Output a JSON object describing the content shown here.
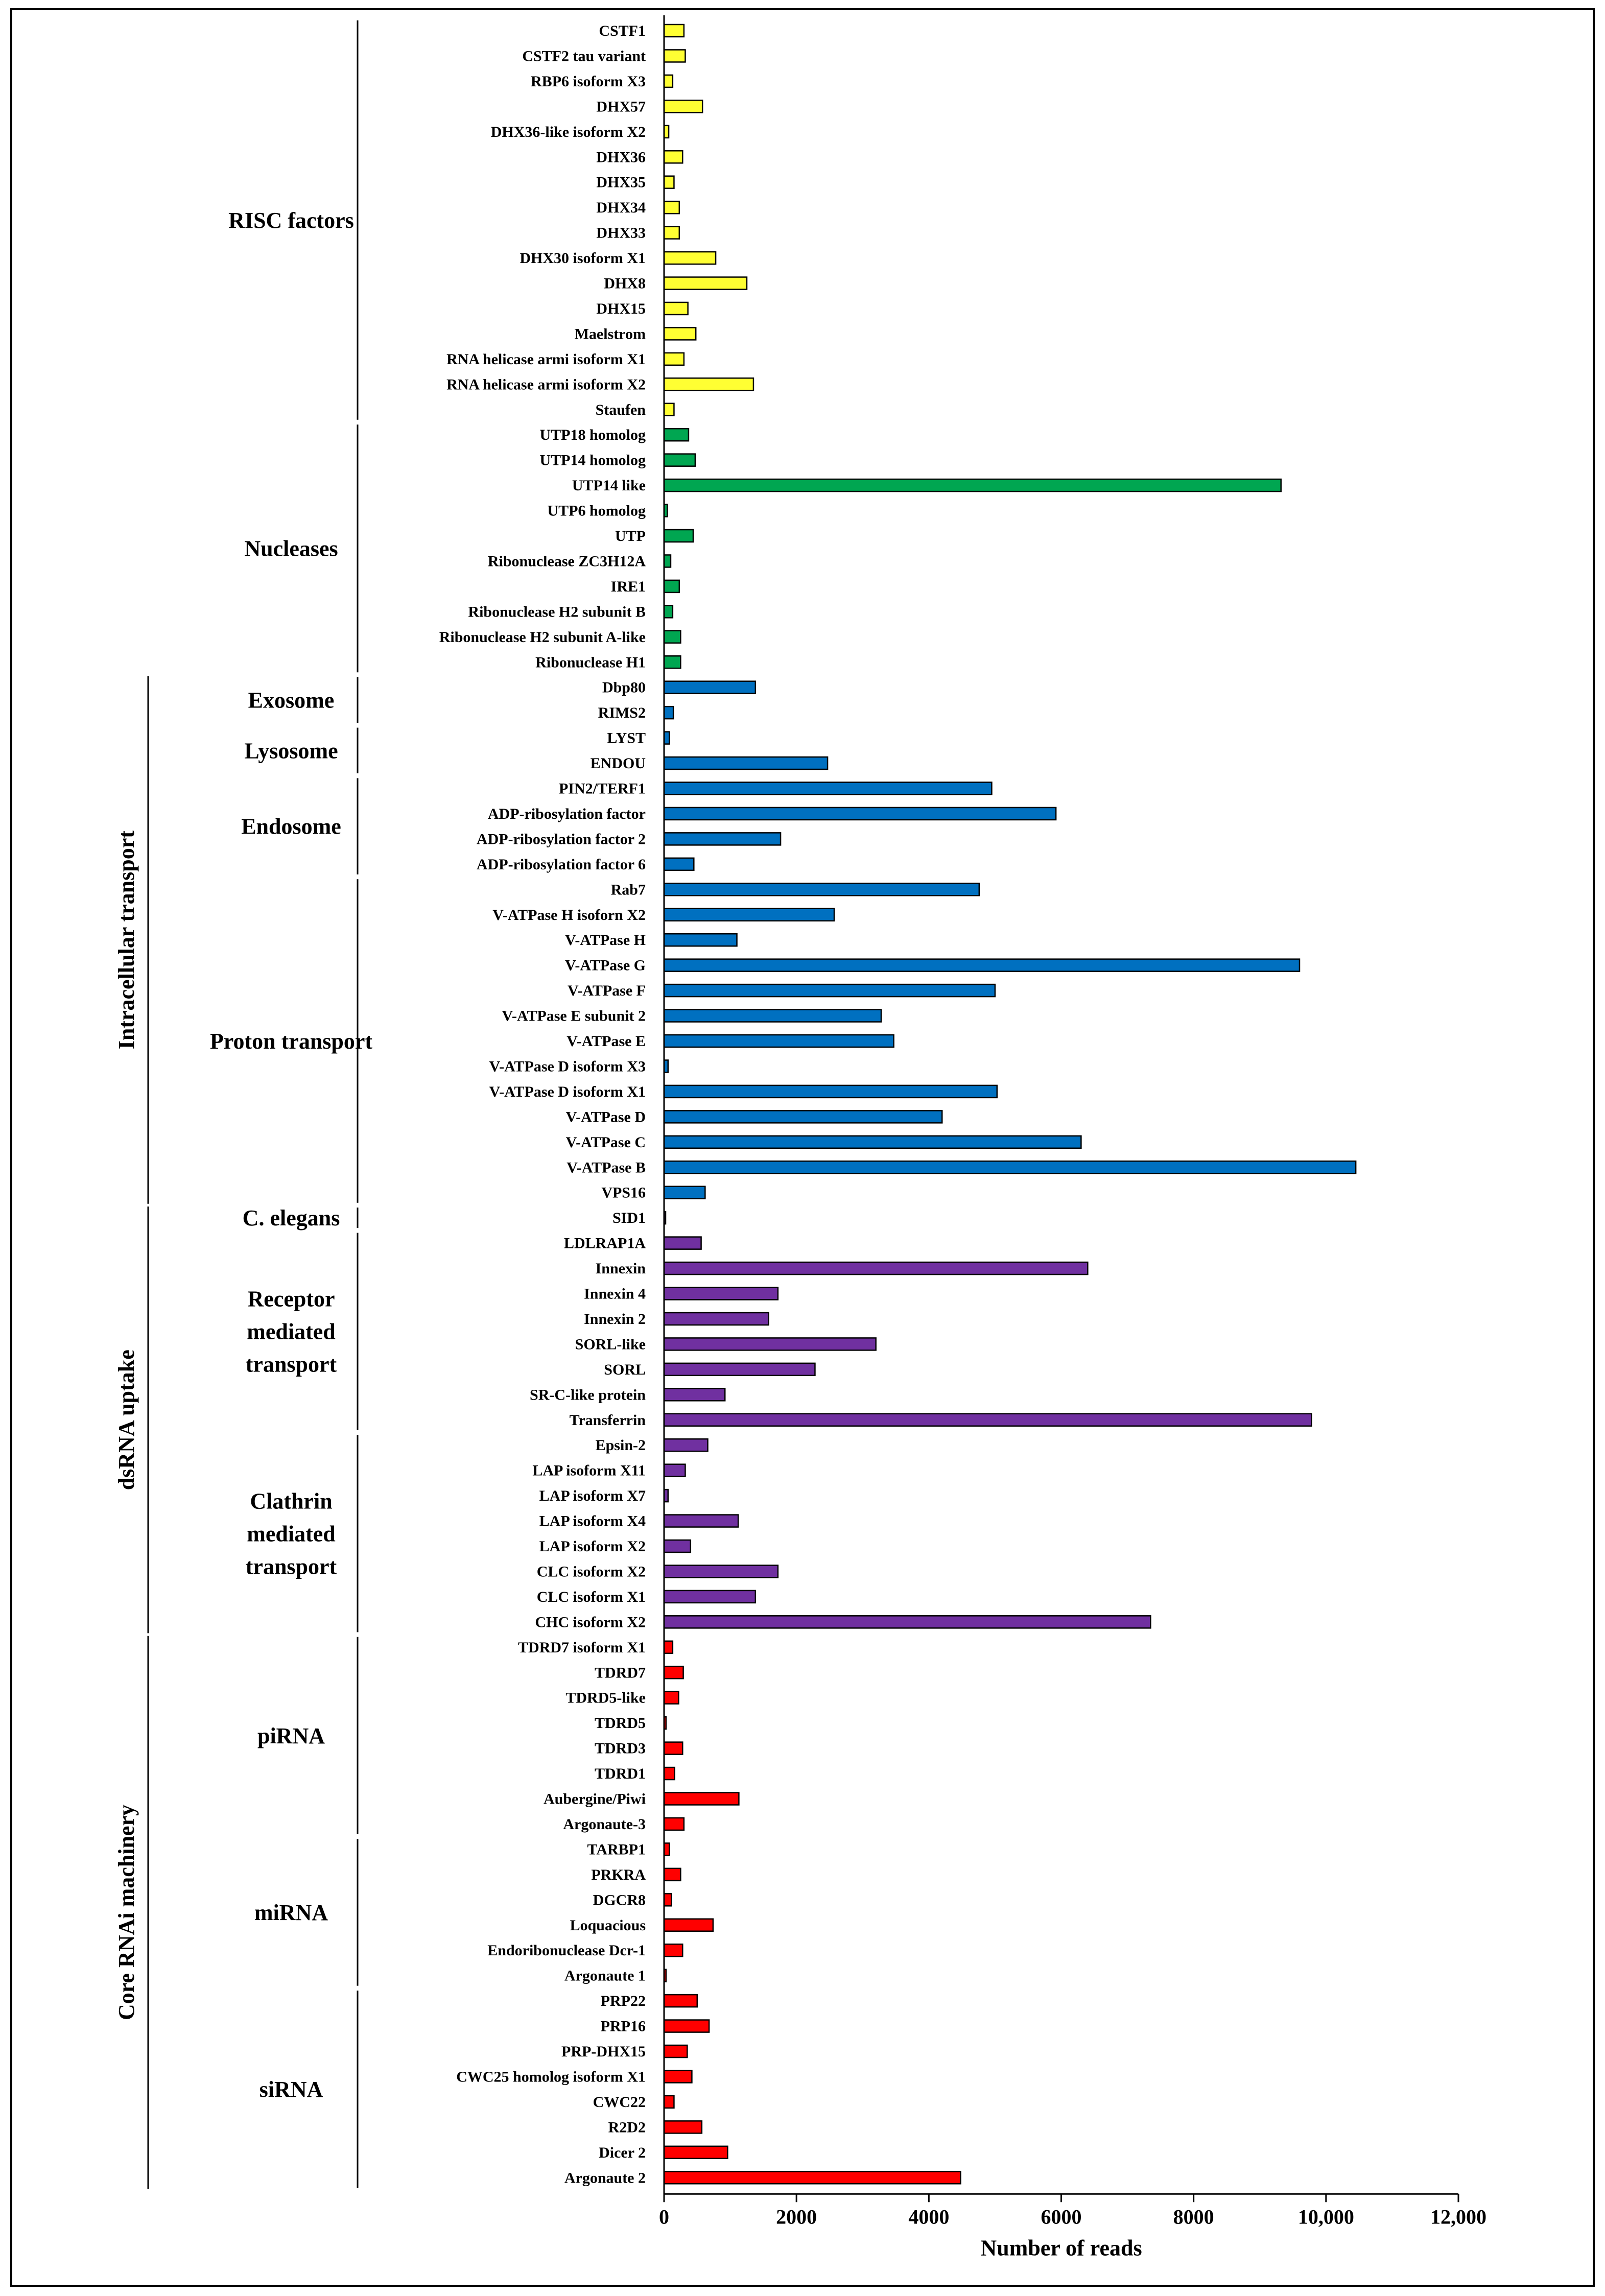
{
  "chart_data": {
    "type": "bar",
    "orientation": "horizontal",
    "xlabel": "Number of reads",
    "xlim": [
      0,
      12000
    ],
    "xticks": [
      0,
      2000,
      4000,
      6000,
      8000,
      10000,
      12000
    ],
    "xtick_labels": [
      "0",
      "2000",
      "4000",
      "6000",
      "8000",
      "10,000",
      "12,000"
    ],
    "grid": false,
    "legend": "none",
    "colors": {
      "yellow": "#ffff33",
      "green": "#00a651",
      "blue": "#0070c0",
      "purple": "#7030a0",
      "red": "#ff0000"
    },
    "bars": [
      {
        "label": "CSTF1",
        "value": 300,
        "color": "yellow"
      },
      {
        "label": "CSTF2 tau variant",
        "value": 320,
        "color": "yellow"
      },
      {
        "label": "RBP6 isoform X3",
        "value": 130,
        "color": "yellow"
      },
      {
        "label": "DHX57",
        "value": 580,
        "color": "yellow"
      },
      {
        "label": "DHX36-like isoform X2",
        "value": 70,
        "color": "yellow"
      },
      {
        "label": "DHX36",
        "value": 280,
        "color": "yellow"
      },
      {
        "label": "DHX35",
        "value": 150,
        "color": "yellow"
      },
      {
        "label": "DHX34",
        "value": 230,
        "color": "yellow"
      },
      {
        "label": "DHX33",
        "value": 230,
        "color": "yellow"
      },
      {
        "label": "DHX30 isoform X1",
        "value": 780,
        "color": "yellow"
      },
      {
        "label": "DHX8",
        "value": 1250,
        "color": "yellow"
      },
      {
        "label": "DHX15",
        "value": 360,
        "color": "yellow"
      },
      {
        "label": "Maelstrom",
        "value": 480,
        "color": "yellow"
      },
      {
        "label": "RNA helicase armi isoform X1",
        "value": 300,
        "color": "yellow"
      },
      {
        "label": "RNA helicase armi isoform X2",
        "value": 1350,
        "color": "yellow"
      },
      {
        "label": "Staufen",
        "value": 150,
        "color": "yellow"
      },
      {
        "label": "UTP18 homolog",
        "value": 370,
        "color": "green"
      },
      {
        "label": "UTP14 homolog",
        "value": 470,
        "color": "green"
      },
      {
        "label": "UTP14 like",
        "value": 9320,
        "color": "green"
      },
      {
        "label": "UTP6 homolog",
        "value": 50,
        "color": "green"
      },
      {
        "label": "UTP",
        "value": 440,
        "color": "green"
      },
      {
        "label": "Ribonuclease ZC3H12A",
        "value": 100,
        "color": "green"
      },
      {
        "label": "IRE1",
        "value": 230,
        "color": "green"
      },
      {
        "label": "Ribonuclease H2 subunit B",
        "value": 130,
        "color": "green"
      },
      {
        "label": "Ribonuclease H2 subunit A-like",
        "value": 250,
        "color": "green"
      },
      {
        "label": "Ribonuclease H1",
        "value": 250,
        "color": "green"
      },
      {
        "label": "Dbp80",
        "value": 1380,
        "color": "blue"
      },
      {
        "label": "RIMS2",
        "value": 140,
        "color": "blue"
      },
      {
        "label": "LYST",
        "value": 80,
        "color": "blue"
      },
      {
        "label": "ENDOU",
        "value": 2470,
        "color": "blue"
      },
      {
        "label": "PIN2/TERF1",
        "value": 4950,
        "color": "blue"
      },
      {
        "label": "ADP-ribosylation factor",
        "value": 5920,
        "color": "blue"
      },
      {
        "label": "ADP-ribosylation factor 2",
        "value": 1760,
        "color": "blue"
      },
      {
        "label": "ADP-ribosylation factor 6",
        "value": 450,
        "color": "blue"
      },
      {
        "label": "Rab7",
        "value": 4760,
        "color": "blue"
      },
      {
        "label": "V-ATPase H isoforn X2",
        "value": 2570,
        "color": "blue"
      },
      {
        "label": "V-ATPase H",
        "value": 1100,
        "color": "blue"
      },
      {
        "label": "V-ATPase G",
        "value": 9600,
        "color": "blue"
      },
      {
        "label": "V-ATPase F",
        "value": 5000,
        "color": "blue"
      },
      {
        "label": "V-ATPase E subunit 2",
        "value": 3280,
        "color": "blue"
      },
      {
        "label": "V-ATPase E",
        "value": 3470,
        "color": "blue"
      },
      {
        "label": "V-ATPase D isoform X3",
        "value": 60,
        "color": "blue"
      },
      {
        "label": "V-ATPase D isoform X1",
        "value": 5030,
        "color": "blue"
      },
      {
        "label": "V-ATPase D",
        "value": 4200,
        "color": "blue"
      },
      {
        "label": "V-ATPase C",
        "value": 6300,
        "color": "blue"
      },
      {
        "label": "V-ATPase B",
        "value": 10450,
        "color": "blue"
      },
      {
        "label": "VPS16",
        "value": 620,
        "color": "blue"
      },
      {
        "label": "SID1",
        "value": 20,
        "color": "purple"
      },
      {
        "label": "LDLRAP1A",
        "value": 560,
        "color": "purple"
      },
      {
        "label": "Innexin",
        "value": 6400,
        "color": "purple"
      },
      {
        "label": "Innexin 4",
        "value": 1720,
        "color": "purple"
      },
      {
        "label": "Innexin 2",
        "value": 1580,
        "color": "purple"
      },
      {
        "label": "SORL-like",
        "value": 3200,
        "color": "purple"
      },
      {
        "label": "SORL",
        "value": 2280,
        "color": "purple"
      },
      {
        "label": "SR-C-like protein",
        "value": 920,
        "color": "purple"
      },
      {
        "label": "Transferrin",
        "value": 9780,
        "color": "purple"
      },
      {
        "label": "Epsin-2",
        "value": 660,
        "color": "purple"
      },
      {
        "label": "LAP isoform X11",
        "value": 320,
        "color": "purple"
      },
      {
        "label": "LAP isoform X7",
        "value": 60,
        "color": "purple"
      },
      {
        "label": "LAP isoform X4",
        "value": 1120,
        "color": "purple"
      },
      {
        "label": "LAP isoform X2",
        "value": 400,
        "color": "purple"
      },
      {
        "label": "CLC isoform X2",
        "value": 1720,
        "color": "purple"
      },
      {
        "label": "CLC isoform X1",
        "value": 1380,
        "color": "purple"
      },
      {
        "label": "CHC isoform X2",
        "value": 7350,
        "color": "purple"
      },
      {
        "label": "TDRD7 isoform X1",
        "value": 130,
        "color": "red"
      },
      {
        "label": "TDRD7",
        "value": 290,
        "color": "red"
      },
      {
        "label": "TDRD5-like",
        "value": 220,
        "color": "red"
      },
      {
        "label": "TDRD5",
        "value": 30,
        "color": "red"
      },
      {
        "label": "TDRD3",
        "value": 280,
        "color": "red"
      },
      {
        "label": "TDRD1",
        "value": 160,
        "color": "red"
      },
      {
        "label": "Aubergine/Piwi",
        "value": 1130,
        "color": "red"
      },
      {
        "label": "Argonaute-3",
        "value": 300,
        "color": "red"
      },
      {
        "label": "TARBP1",
        "value": 80,
        "color": "red"
      },
      {
        "label": "PRKRA",
        "value": 250,
        "color": "red"
      },
      {
        "label": "DGCR8",
        "value": 110,
        "color": "red"
      },
      {
        "label": "Loquacious",
        "value": 740,
        "color": "red"
      },
      {
        "label": "Endoribonuclease Dcr-1",
        "value": 280,
        "color": "red"
      },
      {
        "label": "Argonaute 1",
        "value": 30,
        "color": "red"
      },
      {
        "label": "PRP22",
        "value": 500,
        "color": "red"
      },
      {
        "label": "PRP16",
        "value": 680,
        "color": "red"
      },
      {
        "label": "PRP-DHX15",
        "value": 350,
        "color": "red"
      },
      {
        "label": "CWC25 homolog isoform X1",
        "value": 420,
        "color": "red"
      },
      {
        "label": "CWC22",
        "value": 150,
        "color": "red"
      },
      {
        "label": "R2D2",
        "value": 570,
        "color": "red"
      },
      {
        "label": "Dicer 2",
        "value": 960,
        "color": "red"
      },
      {
        "label": "Argonaute 2",
        "value": 4480,
        "color": "red"
      }
    ],
    "groups": [
      {
        "label": "RISC factors",
        "start": 0,
        "end": 15
      },
      {
        "label": "Nucleases",
        "start": 16,
        "end": 25
      },
      {
        "label": "Exosome",
        "start": 26,
        "end": 27
      },
      {
        "label": "Lysosome",
        "start": 28,
        "end": 29
      },
      {
        "label": "Endosome",
        "start": 30,
        "end": 33
      },
      {
        "label": "Proton transport",
        "start": 34,
        "end": 46
      },
      {
        "label": "C. elegans",
        "start": 47,
        "end": 47
      },
      {
        "label": "Receptor\nmediated\ntransport",
        "start": 48,
        "end": 55
      },
      {
        "label": "Clathrin\nmediated\ntransport",
        "start": 56,
        "end": 63
      },
      {
        "label": "piRNA",
        "start": 64,
        "end": 71
      },
      {
        "label": "miRNA",
        "start": 72,
        "end": 77
      },
      {
        "label": "siRNA",
        "start": 78,
        "end": 85
      }
    ],
    "sections": [
      {
        "label": "Intracellular transport",
        "start": 26,
        "end": 46
      },
      {
        "label": "dsRNA uptake",
        "start": 47,
        "end": 63
      },
      {
        "label": "Core RNAi machinery",
        "start": 64,
        "end": 85
      }
    ]
  }
}
